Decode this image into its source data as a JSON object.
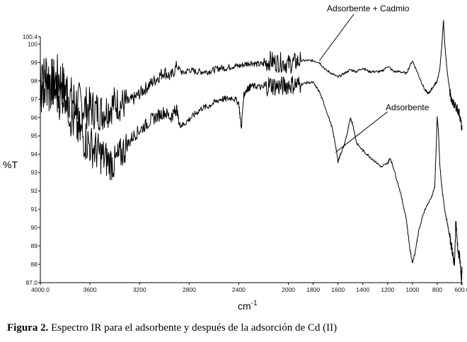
{
  "chart_data": {
    "type": "line",
    "title": "",
    "xlabel": "cm",
    "xlabel_superscript": "-1",
    "ylabel": "%T",
    "x_reversed": true,
    "xlim": [
      4000.0,
      600.0
    ],
    "ylim": [
      87.0,
      100.4
    ],
    "x_ticks": [
      "4000.0",
      "3600",
      "3200",
      "2800",
      "2400",
      "2000",
      "1800",
      "1600",
      "1400",
      "1200",
      "1000",
      "800",
      "600.0"
    ],
    "y_ticks": [
      "100.4",
      "100",
      "99",
      "98",
      "97",
      "96",
      "95",
      "94",
      "93",
      "92",
      "91",
      "90",
      "89",
      "88",
      "87.0"
    ],
    "series": [
      {
        "name": "Adsorbente + Cadmio",
        "color": "#000000",
        "x": [
          4000,
          3950,
          3900,
          3850,
          3800,
          3750,
          3700,
          3650,
          3600,
          3550,
          3500,
          3450,
          3400,
          3350,
          3300,
          3250,
          3200,
          3150,
          3100,
          3050,
          3000,
          2950,
          2900,
          2850,
          2800,
          2750,
          2700,
          2650,
          2600,
          2550,
          2500,
          2450,
          2400,
          2350,
          2300,
          2250,
          2200,
          2150,
          2100,
          2050,
          2000,
          1950,
          1900,
          1850,
          1800,
          1750,
          1700,
          1650,
          1600,
          1550,
          1500,
          1450,
          1400,
          1350,
          1300,
          1250,
          1200,
          1150,
          1100,
          1050,
          1000,
          950,
          900,
          870,
          850,
          820,
          800,
          780,
          760,
          750,
          740,
          720,
          700,
          680,
          660,
          640,
          620,
          600
        ],
        "y": [
          97.5,
          98.5,
          97.8,
          98.2,
          97.5,
          97.0,
          96.8,
          96.6,
          96.5,
          96.4,
          96.3,
          96.5,
          96.8,
          96.7,
          96.8,
          97.0,
          97.3,
          97.6,
          97.9,
          98.2,
          98.5,
          98.2,
          98.8,
          98.4,
          98.6,
          98.5,
          98.5,
          98.5,
          98.6,
          98.7,
          98.7,
          98.8,
          98.8,
          98.9,
          99.0,
          98.9,
          98.9,
          99.1,
          99.0,
          99.0,
          98.9,
          99.0,
          99.1,
          99.1,
          99.1,
          99.0,
          98.6,
          98.4,
          98.2,
          98.4,
          98.6,
          98.5,
          98.7,
          98.5,
          98.5,
          98.5,
          98.8,
          98.5,
          98.5,
          98.4,
          99.1,
          98.3,
          97.5,
          97.3,
          97.5,
          97.8,
          98.0,
          98.6,
          100.2,
          101.3,
          100.1,
          98.5,
          97.5,
          96.8,
          96.7,
          96.5,
          96.2,
          95.3
        ]
      },
      {
        "name": "Adsorbente",
        "color": "#000000",
        "x": [
          4000,
          3950,
          3900,
          3850,
          3800,
          3750,
          3700,
          3650,
          3600,
          3550,
          3500,
          3450,
          3400,
          3350,
          3300,
          3250,
          3200,
          3150,
          3100,
          3050,
          3000,
          2950,
          2920,
          2900,
          2880,
          2850,
          2800,
          2750,
          2700,
          2650,
          2600,
          2550,
          2500,
          2450,
          2400,
          2380,
          2360,
          2340,
          2320,
          2300,
          2250,
          2200,
          2150,
          2100,
          2050,
          2000,
          1950,
          1900,
          1850,
          1800,
          1750,
          1700,
          1650,
          1620,
          1600,
          1580,
          1550,
          1520,
          1500,
          1480,
          1450,
          1400,
          1350,
          1300,
          1250,
          1200,
          1180,
          1150,
          1100,
          1050,
          1020,
          1000,
          980,
          950,
          900,
          850,
          820,
          800,
          790,
          780,
          760,
          740,
          720,
          700,
          680,
          670,
          660,
          650,
          640,
          630,
          620,
          610,
          605,
          600
        ],
        "y": [
          97.8,
          97.4,
          97.6,
          97.2,
          97.5,
          96.0,
          95.4,
          94.9,
          94.5,
          94.2,
          93.9,
          93.6,
          93.5,
          94.0,
          94.5,
          95.0,
          95.3,
          95.6,
          95.9,
          96.1,
          96.3,
          96.0,
          96.3,
          96.5,
          95.6,
          95.6,
          95.9,
          96.2,
          96.5,
          96.6,
          96.8,
          97.0,
          97.0,
          97.1,
          96.8,
          95.4,
          97.2,
          97.5,
          97.6,
          97.7,
          97.7,
          97.6,
          97.8,
          97.7,
          97.7,
          97.8,
          97.8,
          97.8,
          97.9,
          97.9,
          97.4,
          96.5,
          95.5,
          94.5,
          93.6,
          94.0,
          94.5,
          95.3,
          96.0,
          95.6,
          94.6,
          94.2,
          93.9,
          93.6,
          93.3,
          93.5,
          93.8,
          93.2,
          92.0,
          90.5,
          88.8,
          88.1,
          88.6,
          89.8,
          91.0,
          91.6,
          92.2,
          96.0,
          95.2,
          93.5,
          92.0,
          91.0,
          90.3,
          89.5,
          88.8,
          88.3,
          88.0,
          90.5,
          89.3,
          88.5,
          88.5,
          87.6,
          87.0,
          87.8
        ]
      }
    ],
    "annotations": [
      {
        "text": "Adsorbente + Cadmio",
        "series": 0,
        "x": 1750,
        "y": 99.1
      },
      {
        "text": "Adsorbente",
        "series": 1,
        "x": 1620,
        "y": 94.1
      }
    ]
  },
  "caption": {
    "label": "Figura  2.",
    "text": "  Espectro IR para el adsorbente y después de la adsorción de Cd (II)"
  }
}
